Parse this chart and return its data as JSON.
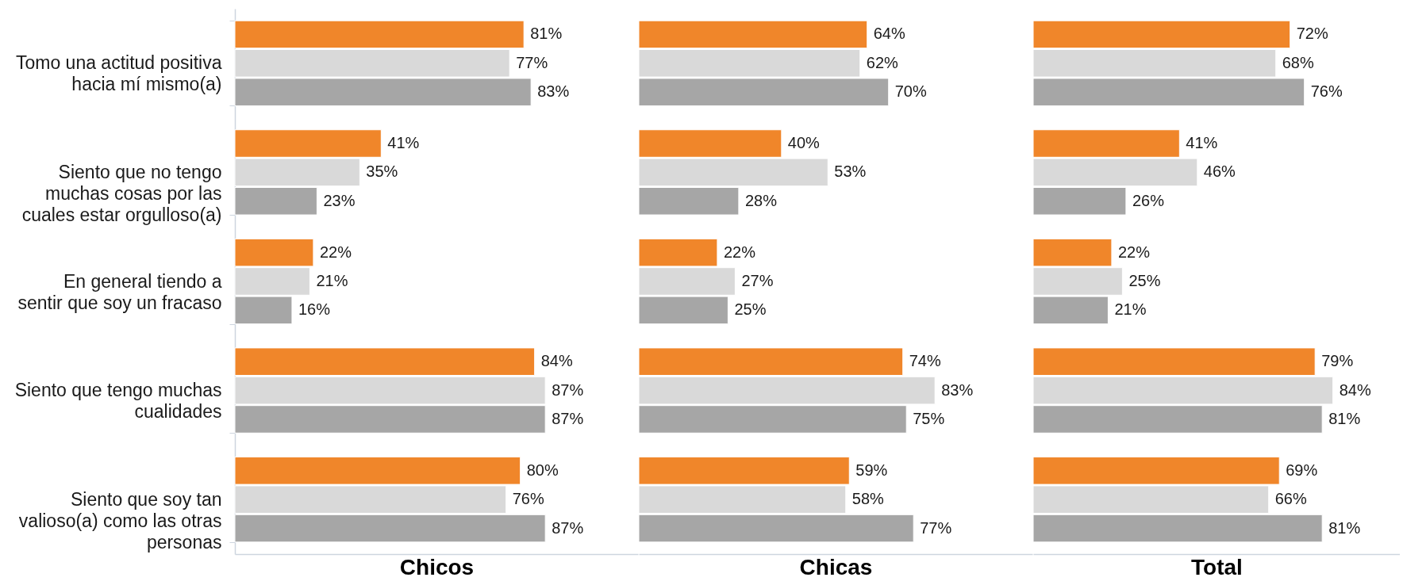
{
  "chart_data": [
    {
      "type": "bar",
      "orientation": "horizontal",
      "xlabel": "Chicos",
      "tick_labels": "y",
      "categories": [
        "Tomo una actitud positiva hacia mí mismo(a)",
        "Siento que no tengo muchas cosas por las cuales estar orgulloso(a)",
        "En general tiendo a sentir que soy un fracaso",
        "Siento que tengo muchas cualidades",
        "Siento que soy tan valioso(a) como las otras personas"
      ],
      "series": [
        {
          "color": "#f0862a",
          "values": [
            81,
            41,
            22,
            84,
            80
          ],
          "value_labels": [
            "81%",
            "41%",
            "22%",
            "84%",
            "80%"
          ]
        },
        {
          "color": "#d9d9d9",
          "values": [
            77,
            35,
            21,
            87,
            76
          ],
          "value_labels": [
            "77%",
            "35%",
            "21%",
            "87%",
            "76%"
          ]
        },
        {
          "color": "#a6a6a6",
          "values": [
            83,
            23,
            16,
            87,
            87
          ],
          "value_labels": [
            "83%",
            "23%",
            "16%",
            "87%",
            "87%"
          ]
        }
      ]
    },
    {
      "type": "bar",
      "orientation": "horizontal",
      "xlabel": "Chicas",
      "tick_labels": false,
      "categories": [
        null,
        null,
        null,
        null,
        null
      ],
      "series": [
        {
          "color": "#f0862a",
          "values": [
            64,
            40,
            22,
            74,
            59
          ],
          "value_labels": [
            "64%",
            "40%",
            "22%",
            "74%",
            "59%"
          ]
        },
        {
          "color": "#d9d9d9",
          "values": [
            62,
            53,
            27,
            83,
            58
          ],
          "value_labels": [
            "62%",
            "53%",
            "27%",
            "83%",
            "58%"
          ]
        },
        {
          "color": "#a6a6a6",
          "values": [
            70,
            28,
            25,
            75,
            77
          ],
          "value_labels": [
            "70%",
            "28%",
            "25%",
            "75%",
            "77%"
          ]
        }
      ]
    },
    {
      "type": "bar",
      "orientation": "horizontal",
      "xlabel": "Total",
      "tick_labels": false,
      "categories": [
        null,
        null,
        null,
        null,
        null
      ],
      "series": [
        {
          "color": "#f0862a",
          "values": [
            72,
            41,
            22,
            79,
            69
          ],
          "value_labels": [
            "72%",
            "41%",
            "22%",
            "79%",
            "69%"
          ]
        },
        {
          "color": "#d9d9d9",
          "values": [
            68,
            46,
            25,
            84,
            66
          ],
          "value_labels": [
            "68%",
            "46%",
            "25%",
            "84%",
            "66%"
          ]
        },
        {
          "color": "#a6a6a6",
          "values": [
            76,
            26,
            21,
            81,
            81
          ],
          "value_labels": [
            "76%",
            "26%",
            "21%",
            "81%",
            "81%"
          ]
        }
      ]
    }
  ]
}
